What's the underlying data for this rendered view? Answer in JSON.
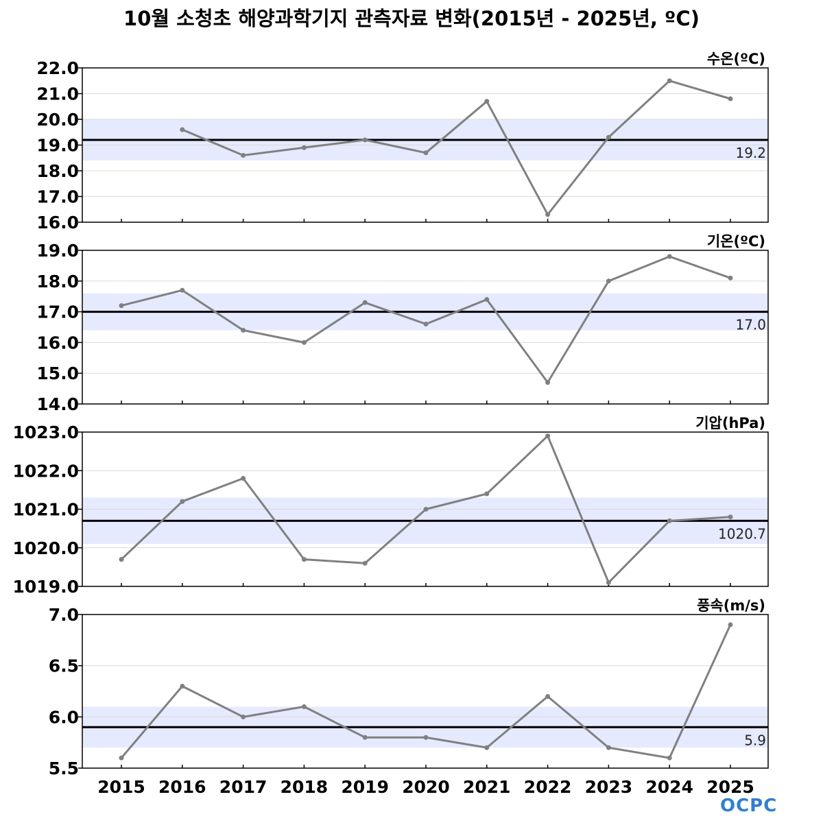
{
  "title": "10월 소청초 해양과학기지 관측자료 변화(2015년 - 2025년, ºC)",
  "logo_text": "OCPC",
  "colors": {
    "line": "#808080",
    "band": "#e6eaff",
    "mean_line": "#000000",
    "grid": "#d9d9d9",
    "logo": "#2f7fd0"
  },
  "chart_data": [
    {
      "type": "line",
      "panel_label": "수온(ºC)",
      "x": [
        2015,
        2016,
        2017,
        2018,
        2019,
        2020,
        2021,
        2022,
        2023,
        2024,
        2025
      ],
      "values": [
        null,
        19.6,
        18.6,
        18.9,
        19.2,
        18.7,
        20.7,
        16.3,
        19.3,
        21.5,
        20.8
      ],
      "ylim": [
        16.0,
        22.0
      ],
      "yticks": [
        "16.0",
        "17.0",
        "18.0",
        "19.0",
        "20.0",
        "21.0",
        "22.0"
      ],
      "mean": 19.2,
      "mean_label": "19.2",
      "band": [
        18.4,
        20.0
      ]
    },
    {
      "type": "line",
      "panel_label": "기온(ºC)",
      "x": [
        2015,
        2016,
        2017,
        2018,
        2019,
        2020,
        2021,
        2022,
        2023,
        2024,
        2025
      ],
      "values": [
        17.2,
        17.7,
        16.4,
        16.0,
        17.3,
        16.6,
        17.4,
        14.7,
        18.0,
        18.8,
        18.1
      ],
      "ylim": [
        14.0,
        19.0
      ],
      "yticks": [
        "14.0",
        "15.0",
        "16.0",
        "17.0",
        "18.0",
        "19.0"
      ],
      "mean": 17.0,
      "mean_label": "17.0",
      "band": [
        16.4,
        17.6
      ]
    },
    {
      "type": "line",
      "panel_label": "기압(hPa)",
      "x": [
        2015,
        2016,
        2017,
        2018,
        2019,
        2020,
        2021,
        2022,
        2023,
        2024,
        2025
      ],
      "values": [
        1019.7,
        1021.2,
        1021.8,
        1019.7,
        1019.6,
        1021.0,
        1021.4,
        1022.9,
        1019.1,
        1020.7,
        1020.8
      ],
      "ylim": [
        1019.0,
        1023.0
      ],
      "yticks": [
        "1019.0",
        "1020.0",
        "1021.0",
        "1022.0",
        "1023.0"
      ],
      "mean": 1020.7,
      "mean_label": "1020.7",
      "band": [
        1020.1,
        1021.3
      ]
    },
    {
      "type": "line",
      "panel_label": "풍속(m/s)",
      "x": [
        2015,
        2016,
        2017,
        2018,
        2019,
        2020,
        2021,
        2022,
        2023,
        2024,
        2025
      ],
      "x_tick_labels": [
        "2015",
        "2016",
        "2017",
        "2018",
        "2019",
        "2020",
        "2021",
        "2022",
        "2023",
        "2024",
        "2025"
      ],
      "values": [
        5.6,
        6.3,
        6.0,
        6.1,
        5.8,
        5.8,
        5.7,
        6.2,
        5.7,
        5.6,
        6.9
      ],
      "ylim": [
        5.5,
        7.0
      ],
      "yticks": [
        "5.5",
        "6.0",
        "6.5",
        "7.0"
      ],
      "mean": 5.9,
      "mean_label": "5.9",
      "band": [
        5.7,
        6.1
      ]
    }
  ]
}
